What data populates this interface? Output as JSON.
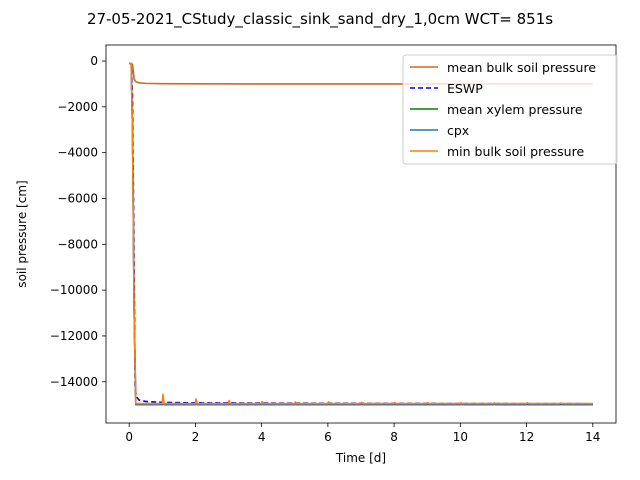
{
  "chart_data": {
    "type": "line",
    "title": "27-05-2021_CStudy_classic_sink_sand_dry_1,0cm  WCT= 851s",
    "xlabel": "Time [d]",
    "ylabel": "soil pressure [cm]",
    "xlim": [
      -0.7,
      14.7
    ],
    "ylim": [
      -15800,
      700
    ],
    "xticks": [
      0,
      2,
      4,
      6,
      8,
      10,
      12,
      14
    ],
    "yticks": [
      0,
      -2000,
      -4000,
      -6000,
      -8000,
      -10000,
      -12000,
      -14000
    ],
    "ytick_labels": [
      "0",
      "−2000",
      "−4000",
      "−6000",
      "−8000",
      "−10000",
      "−12000",
      "−14000"
    ],
    "grid": false,
    "legend_position": "top-right",
    "series": [
      {
        "name": "mean bulk soil pressure",
        "color": "#d2691e",
        "dash": "solid",
        "x": [
          0.0,
          0.06,
          0.1,
          0.12,
          0.15,
          0.2,
          0.3,
          0.5,
          1.0,
          2.0,
          4.0,
          6.0,
          8.0,
          10.0,
          12.0,
          14.0
        ],
        "y": [
          -100,
          -100,
          -150,
          -400,
          -800,
          -900,
          -950,
          -975,
          -990,
          -995,
          -998,
          -1000,
          -1000,
          -1000,
          -1000,
          -1000
        ]
      },
      {
        "name": "ESWP",
        "color": "#0000ff",
        "dash": "dashed",
        "x": [
          0.0,
          0.06,
          0.1,
          0.15,
          0.18,
          0.22,
          0.3,
          0.5,
          1.0,
          2.0,
          4.0,
          6.0,
          8.0,
          10.0,
          12.0,
          14.0
        ],
        "y": [
          -100,
          -100,
          -1500,
          -9000,
          -14300,
          -14650,
          -14800,
          -14860,
          -14900,
          -14920,
          -14930,
          -14940,
          -14945,
          -14950,
          -14955,
          -14960
        ]
      },
      {
        "name": "mean xylem pressure",
        "color": "#008000",
        "dash": "solid",
        "x": [
          0.0,
          0.06,
          0.1,
          0.15,
          0.2,
          0.25,
          1.0,
          1.02,
          1.05,
          2.0,
          2.02,
          2.05,
          3.0,
          3.02,
          3.05,
          4.0,
          4.02,
          4.05,
          5.0,
          5.02,
          5.05,
          6.0,
          6.02,
          6.05,
          7.0,
          7.02,
          7.05,
          8.0,
          8.02,
          8.05,
          9.0,
          9.02,
          9.05,
          10.0,
          10.02,
          10.05,
          11.0,
          11.02,
          11.05,
          12.0,
          12.02,
          12.05,
          13.0,
          13.02,
          13.05,
          14.0
        ],
        "y": [
          -100,
          -100,
          -3000,
          -11000,
          -15000,
          -15000,
          -15000,
          -14650,
          -15000,
          -15000,
          -14800,
          -15000,
          -15000,
          -14850,
          -15000,
          -15000,
          -14880,
          -15000,
          -15000,
          -14900,
          -15000,
          -15000,
          -14900,
          -15000,
          -15000,
          -14920,
          -15000,
          -15000,
          -14920,
          -15000,
          -15000,
          -14930,
          -15000,
          -15000,
          -14930,
          -15000,
          -15000,
          -14940,
          -15000,
          -15000,
          -14940,
          -15000,
          -15000,
          -14950,
          -15000,
          -15000
        ]
      },
      {
        "name": "cpx",
        "color": "#1f77b4",
        "dash": "solid",
        "x": [
          0.0,
          0.06,
          0.1,
          0.15,
          0.2,
          0.25,
          1.0,
          1.02,
          1.05,
          2.0,
          2.02,
          2.05,
          3.0,
          3.02,
          3.05,
          4.0,
          4.02,
          4.05,
          5.0,
          5.02,
          5.05,
          6.0,
          6.02,
          6.05,
          7.0,
          7.02,
          7.05,
          8.0,
          8.02,
          8.05,
          9.0,
          9.02,
          9.05,
          10.0,
          10.02,
          10.05,
          11.0,
          11.02,
          11.05,
          12.0,
          12.02,
          12.05,
          13.0,
          13.02,
          13.05,
          14.0
        ],
        "y": [
          -100,
          -100,
          -3000,
          -11000,
          -15000,
          -15000,
          -15000,
          -14650,
          -15000,
          -15000,
          -14800,
          -15000,
          -15000,
          -14850,
          -15000,
          -15000,
          -14880,
          -15000,
          -15000,
          -14900,
          -15000,
          -15000,
          -14900,
          -15000,
          -15000,
          -14920,
          -15000,
          -15000,
          -14920,
          -15000,
          -15000,
          -14930,
          -15000,
          -15000,
          -14930,
          -15000,
          -15000,
          -14940,
          -15000,
          -15000,
          -14940,
          -15000,
          -15000,
          -14950,
          -15000,
          -15000
        ]
      },
      {
        "name": "min bulk soil pressure",
        "color": "#ff7f0e",
        "dash": "solid",
        "x": [
          0.0,
          0.06,
          0.1,
          0.15,
          0.2,
          0.25,
          1.0,
          1.02,
          1.05,
          2.0,
          2.02,
          2.05,
          3.0,
          3.02,
          3.05,
          4.0,
          4.02,
          4.05,
          5.0,
          5.02,
          5.05,
          6.0,
          6.02,
          6.05,
          7.0,
          7.02,
          7.05,
          8.0,
          8.02,
          8.05,
          9.0,
          9.02,
          9.05,
          10.0,
          10.02,
          10.05,
          11.0,
          11.02,
          11.05,
          12.0,
          12.02,
          12.05,
          13.0,
          13.02,
          13.05,
          14.0
        ],
        "y": [
          -100,
          -100,
          -3000,
          -11000,
          -14950,
          -14950,
          -14950,
          -14550,
          -14950,
          -14950,
          -14750,
          -14950,
          -14950,
          -14820,
          -14950,
          -14950,
          -14860,
          -14950,
          -14950,
          -14880,
          -14950,
          -14950,
          -14880,
          -14950,
          -14950,
          -14900,
          -14950,
          -14950,
          -14900,
          -14950,
          -14950,
          -14910,
          -14950,
          -14950,
          -14910,
          -14950,
          -14950,
          -14920,
          -14950,
          -14950,
          -14920,
          -14950,
          -14950,
          -14930,
          -14950,
          -14950
        ]
      }
    ]
  }
}
